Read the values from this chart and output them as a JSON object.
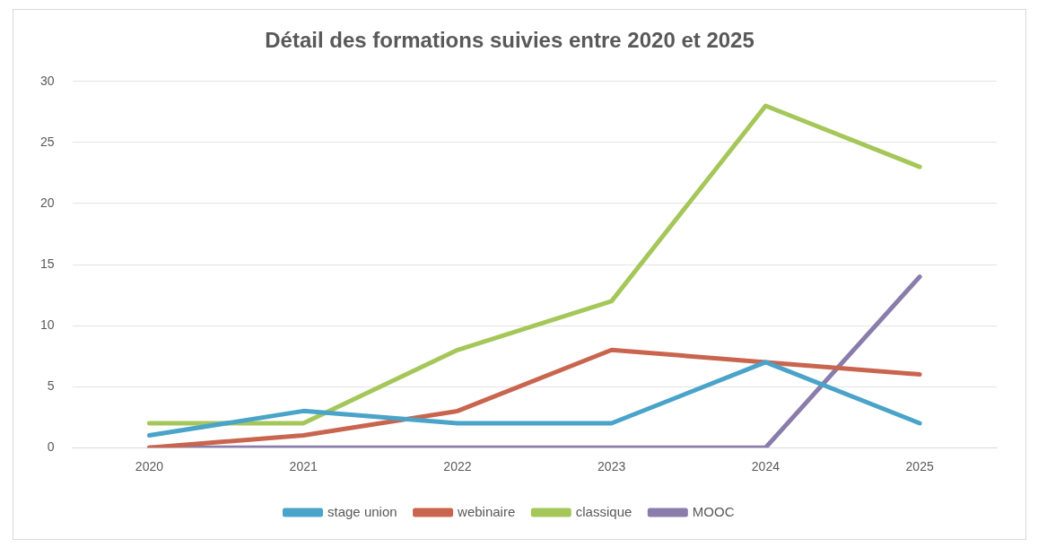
{
  "chart_data": {
    "type": "line",
    "title": "Détail des formations suivies entre 2020 et 2025",
    "categories": [
      "2020",
      "2021",
      "2022",
      "2023",
      "2024",
      "2025"
    ],
    "series": [
      {
        "name": "stage union",
        "color": "#4aa3c8",
        "values": [
          1,
          3,
          2,
          2,
          7,
          2
        ]
      },
      {
        "name": "webinaire",
        "color": "#c9654f",
        "values": [
          0,
          1,
          3,
          8,
          7,
          6
        ]
      },
      {
        "name": "classique",
        "color": "#a5c75a",
        "values": [
          2,
          2,
          8,
          12,
          28,
          23
        ]
      },
      {
        "name": "MOOC",
        "color": "#8a7cab",
        "values": [
          0,
          0,
          0,
          0,
          0,
          14
        ]
      }
    ],
    "ylim": [
      0,
      30
    ],
    "yticks": [
      0,
      5,
      10,
      15,
      20,
      25,
      30
    ],
    "grid": "y",
    "legend": "bottom",
    "marker": "none",
    "line_style": "solid"
  }
}
